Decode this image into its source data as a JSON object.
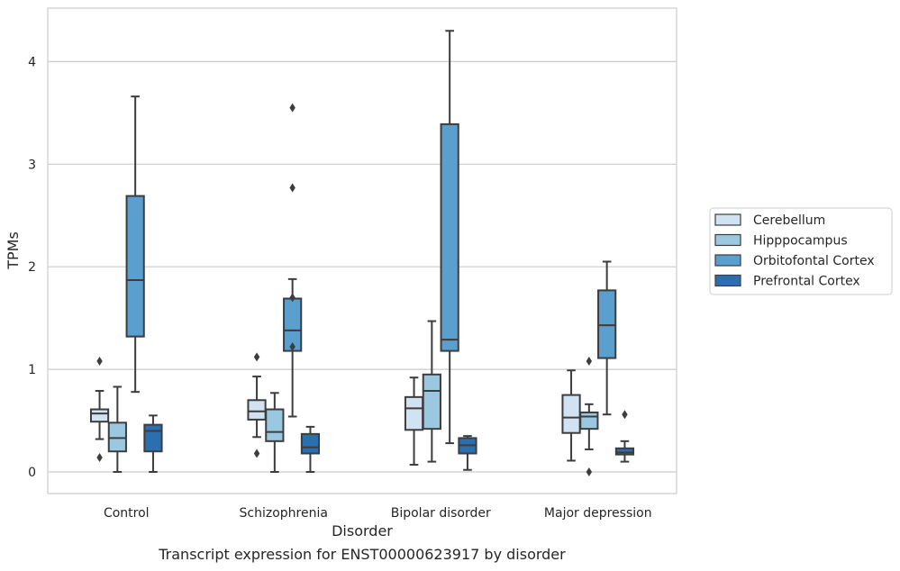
{
  "chart_data": {
    "type": "boxplot",
    "caption": "Transcript expression for ENST00000623917 by disorder",
    "xlabel": "Disorder",
    "ylabel": "TPMs",
    "ylim": [
      -0.2,
      4.5
    ],
    "yticks": [
      0,
      1,
      2,
      3,
      4
    ],
    "grid": "horizontal",
    "legend_position": "right",
    "categories": [
      "Control",
      "Schizophrenia",
      "Bipolar disorder",
      "Major depression"
    ],
    "series": [
      {
        "name": "Cerebellum",
        "color": "#d1e2f2",
        "boxes": [
          {
            "whislo": 0.32,
            "q1": 0.49,
            "med": 0.57,
            "q3": 0.61,
            "whishi": 0.79,
            "fliers": [
              1.08,
              0.14
            ]
          },
          {
            "whislo": 0.34,
            "q1": 0.51,
            "med": 0.59,
            "q3": 0.7,
            "whishi": 0.93,
            "fliers": [
              1.12,
              0.18
            ]
          },
          {
            "whislo": 0.07,
            "q1": 0.41,
            "med": 0.62,
            "q3": 0.73,
            "whishi": 0.92,
            "fliers": []
          },
          {
            "whislo": 0.11,
            "q1": 0.38,
            "med": 0.53,
            "q3": 0.75,
            "whishi": 0.99,
            "fliers": []
          }
        ]
      },
      {
        "name": "Hipppocampus",
        "color": "#9ac8e0",
        "boxes": [
          {
            "whislo": 0.0,
            "q1": 0.2,
            "med": 0.33,
            "q3": 0.48,
            "whishi": 0.83,
            "fliers": []
          },
          {
            "whislo": 0.0,
            "q1": 0.3,
            "med": 0.39,
            "q3": 0.61,
            "whishi": 0.77,
            "fliers": []
          },
          {
            "whislo": 0.1,
            "q1": 0.42,
            "med": 0.79,
            "q3": 0.95,
            "whishi": 1.47,
            "fliers": []
          },
          {
            "whislo": 0.22,
            "q1": 0.42,
            "med": 0.54,
            "q3": 0.58,
            "whishi": 0.66,
            "fliers": [
              1.08,
              0.0
            ]
          }
        ]
      },
      {
        "name": "Orbitofontal Cortex",
        "color": "#5a9fce",
        "boxes": [
          {
            "whislo": 0.78,
            "q1": 1.32,
            "med": 1.87,
            "q3": 2.69,
            "whishi": 3.66,
            "fliers": []
          },
          {
            "whislo": 0.54,
            "q1": 1.18,
            "med": 1.38,
            "q3": 1.69,
            "whishi": 1.88,
            "fliers": [
              1.7,
              1.22,
              3.55,
              2.77
            ]
          },
          {
            "whislo": 0.28,
            "q1": 1.18,
            "med": 1.29,
            "q3": 3.39,
            "whishi": 4.3,
            "fliers": []
          },
          {
            "whislo": 0.56,
            "q1": 1.11,
            "med": 1.43,
            "q3": 1.77,
            "whishi": 2.05,
            "fliers": []
          }
        ]
      },
      {
        "name": "Prefrontal Cortex",
        "color": "#2b6fb0",
        "boxes": [
          {
            "whislo": 0.0,
            "q1": 0.2,
            "med": 0.4,
            "q3": 0.46,
            "whishi": 0.55,
            "fliers": []
          },
          {
            "whislo": 0.0,
            "q1": 0.18,
            "med": 0.24,
            "q3": 0.37,
            "whishi": 0.44,
            "fliers": []
          },
          {
            "whislo": 0.02,
            "q1": 0.18,
            "med": 0.26,
            "q3": 0.33,
            "whishi": 0.35,
            "fliers": []
          },
          {
            "whislo": 0.1,
            "q1": 0.17,
            "med": 0.19,
            "q3": 0.23,
            "whishi": 0.3,
            "fliers": [
              0.56
            ]
          }
        ]
      }
    ]
  }
}
